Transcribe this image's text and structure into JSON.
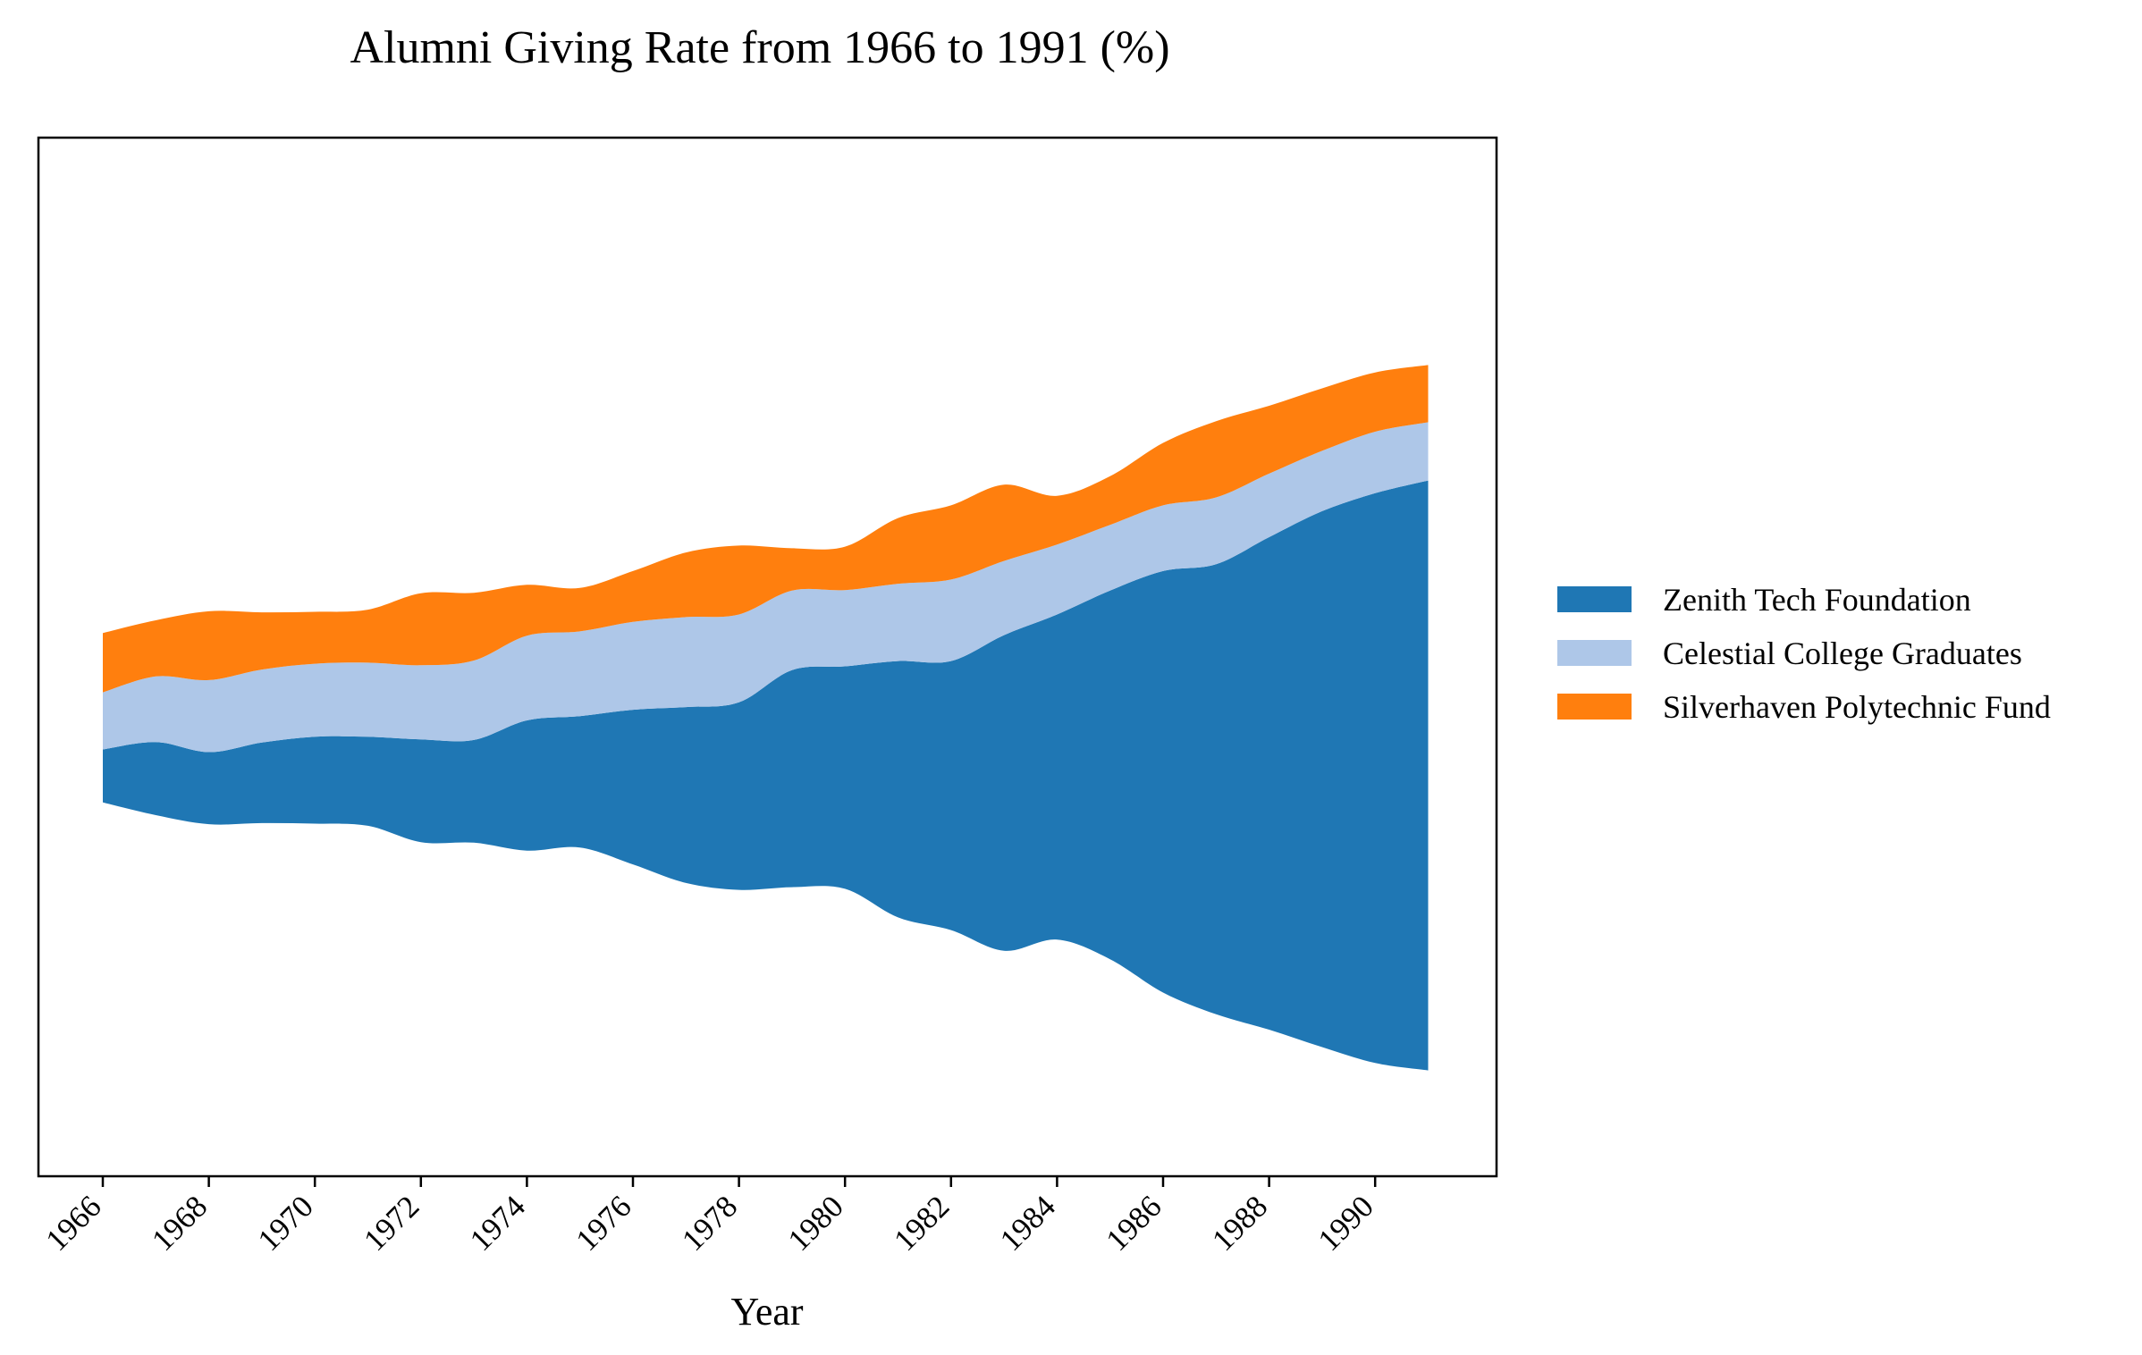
{
  "chart_data": {
    "type": "area",
    "subtype": "streamgraph",
    "title": "Alumni Giving Rate from 1966 to 1991 (%)",
    "xlabel": "Year",
    "ylabel": "",
    "x": [
      1966,
      1967,
      1968,
      1969,
      1970,
      1971,
      1972,
      1973,
      1974,
      1975,
      1976,
      1977,
      1978,
      1979,
      1980,
      1981,
      1982,
      1983,
      1984,
      1985,
      1986,
      1987,
      1988,
      1989,
      1990,
      1991
    ],
    "xticks": [
      "1966",
      "1968",
      "1970",
      "1972",
      "1974",
      "1976",
      "1978",
      "1980",
      "1982",
      "1984",
      "1986",
      "1988",
      "1990"
    ],
    "baseline": "symmetric",
    "yaxis_visible": false,
    "grid": false,
    "legend_position": "right",
    "series": [
      {
        "name": "Zenith Tech Foundation",
        "color": "#1f77b4",
        "values": [
          5.0,
          6.9,
          6.8,
          7.6,
          8.2,
          8.4,
          9.7,
          9.7,
          12.3,
          12.4,
          14.6,
          16.6,
          17.7,
          20.5,
          21.0,
          24.2,
          25.4,
          29.8,
          30.7,
          34.8,
          39.8,
          42.5,
          46.5,
          50.6,
          53.8,
          55.7
        ]
      },
      {
        "name": "Celestial College Graduates",
        "color": "#aec7e8",
        "values": [
          5.4,
          6.2,
          6.8,
          6.9,
          6.9,
          7.0,
          7.0,
          7.5,
          8.0,
          8.0,
          8.3,
          8.5,
          8.3,
          7.5,
          7.2,
          7.3,
          7.7,
          7.0,
          6.6,
          6.2,
          6.2,
          6.3,
          6.0,
          5.7,
          5.8,
          5.5
        ]
      },
      {
        "name": "Silverhaven Polytechnic Fund",
        "color": "#ff7f0e",
        "values": [
          5.6,
          5.3,
          6.5,
          5.4,
          4.9,
          5.0,
          6.8,
          6.4,
          4.8,
          4.1,
          4.8,
          6.1,
          6.5,
          4.0,
          4.1,
          6.2,
          7.0,
          7.2,
          4.6,
          4.6,
          5.9,
          7.2,
          6.4,
          5.9,
          5.6,
          5.4
        ]
      }
    ]
  }
}
